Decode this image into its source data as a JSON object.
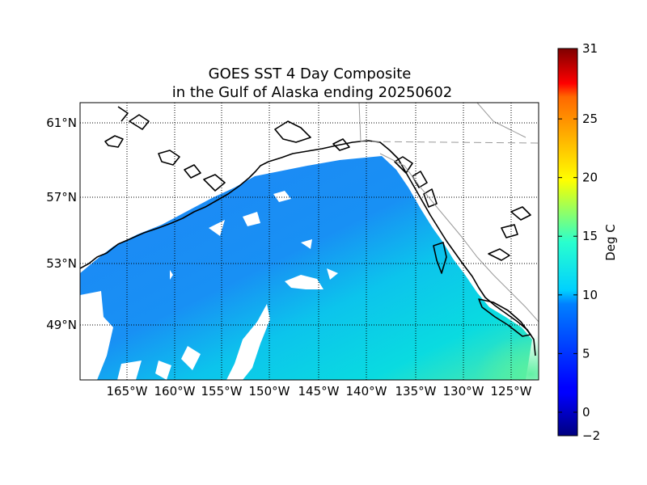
{
  "title": {
    "line1": "GOES SST 4 Day Composite",
    "line2": "in the Gulf of Alaska ending 20250602"
  },
  "map": {
    "projection": "mercator",
    "lon_range": [
      -171.7,
      -123.2
    ],
    "lat_range": [
      45.2,
      62.2
    ],
    "meridians": [
      -165,
      -160,
      -155,
      -150,
      -145,
      -140,
      -135,
      -130,
      -125
    ],
    "parallels": [
      61,
      57,
      53,
      49
    ],
    "meridian_labels": [
      "165°W",
      "160°W",
      "155°W",
      "150°W",
      "145°W",
      "140°W",
      "135°W",
      "130°W",
      "125°W"
    ],
    "parallel_labels": [
      "61°N",
      "57°N",
      "53°N",
      "49°N"
    ],
    "grid": "dotted",
    "ocean_colors": {
      "offshore_west": "#1e8cf5",
      "central": "#178ef3",
      "southeast": "#08d6e6",
      "far_southeast": "#55f0a8",
      "land": "#ffffff",
      "cloud_gap": "#ffffff",
      "coastline": "#000000",
      "border": "#9a9a9a"
    }
  },
  "colorbar": {
    "label": "Deg C",
    "min": -2,
    "max": 31,
    "ticks": [
      -2,
      0,
      5,
      10,
      15,
      20,
      25,
      31
    ],
    "tick_labels": [
      "−2",
      "0",
      "5",
      "10",
      "15",
      "20",
      "25",
      "31"
    ],
    "colormap": "jet"
  }
}
